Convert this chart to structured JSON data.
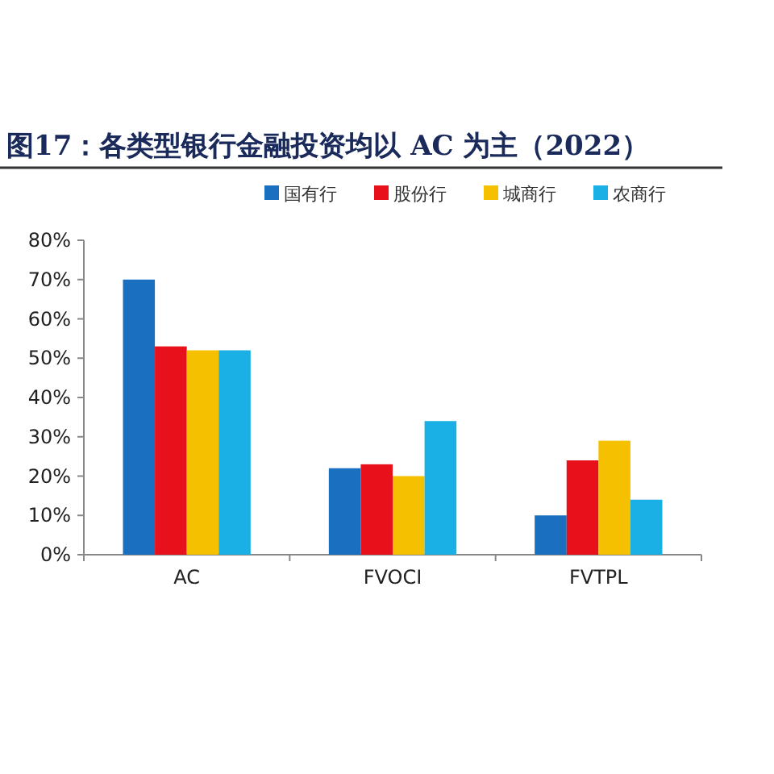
{
  "chart_data": {
    "type": "bar",
    "title": "图17：各类型银行金融投资均以 AC 为主（2022）",
    "categories": [
      "AC",
      "FVOCI",
      "FVTPL"
    ],
    "series": [
      {
        "name": "国有行",
        "color": "#1a6fc0",
        "values": [
          70,
          22,
          10
        ]
      },
      {
        "name": "股份行",
        "color": "#e8101a",
        "values": [
          53,
          23,
          24
        ]
      },
      {
        "name": "城商行",
        "color": "#f5c000",
        "values": [
          52,
          20,
          29
        ]
      },
      {
        "name": "农商行",
        "color": "#1ab0e6",
        "values": [
          52,
          34,
          14
        ]
      }
    ],
    "ylim": [
      0,
      80
    ],
    "yticks": [
      {
        "value": 0,
        "label": "0%"
      },
      {
        "value": 10,
        "label": "10%"
      },
      {
        "value": 20,
        "label": "20%"
      },
      {
        "value": 30,
        "label": "30%"
      },
      {
        "value": 40,
        "label": "40%"
      },
      {
        "value": 50,
        "label": "50%"
      },
      {
        "value": 60,
        "label": "60%"
      },
      {
        "value": 70,
        "label": "70%"
      },
      {
        "value": 80,
        "label": "80%"
      }
    ],
    "legend": "top",
    "grid": false
  }
}
